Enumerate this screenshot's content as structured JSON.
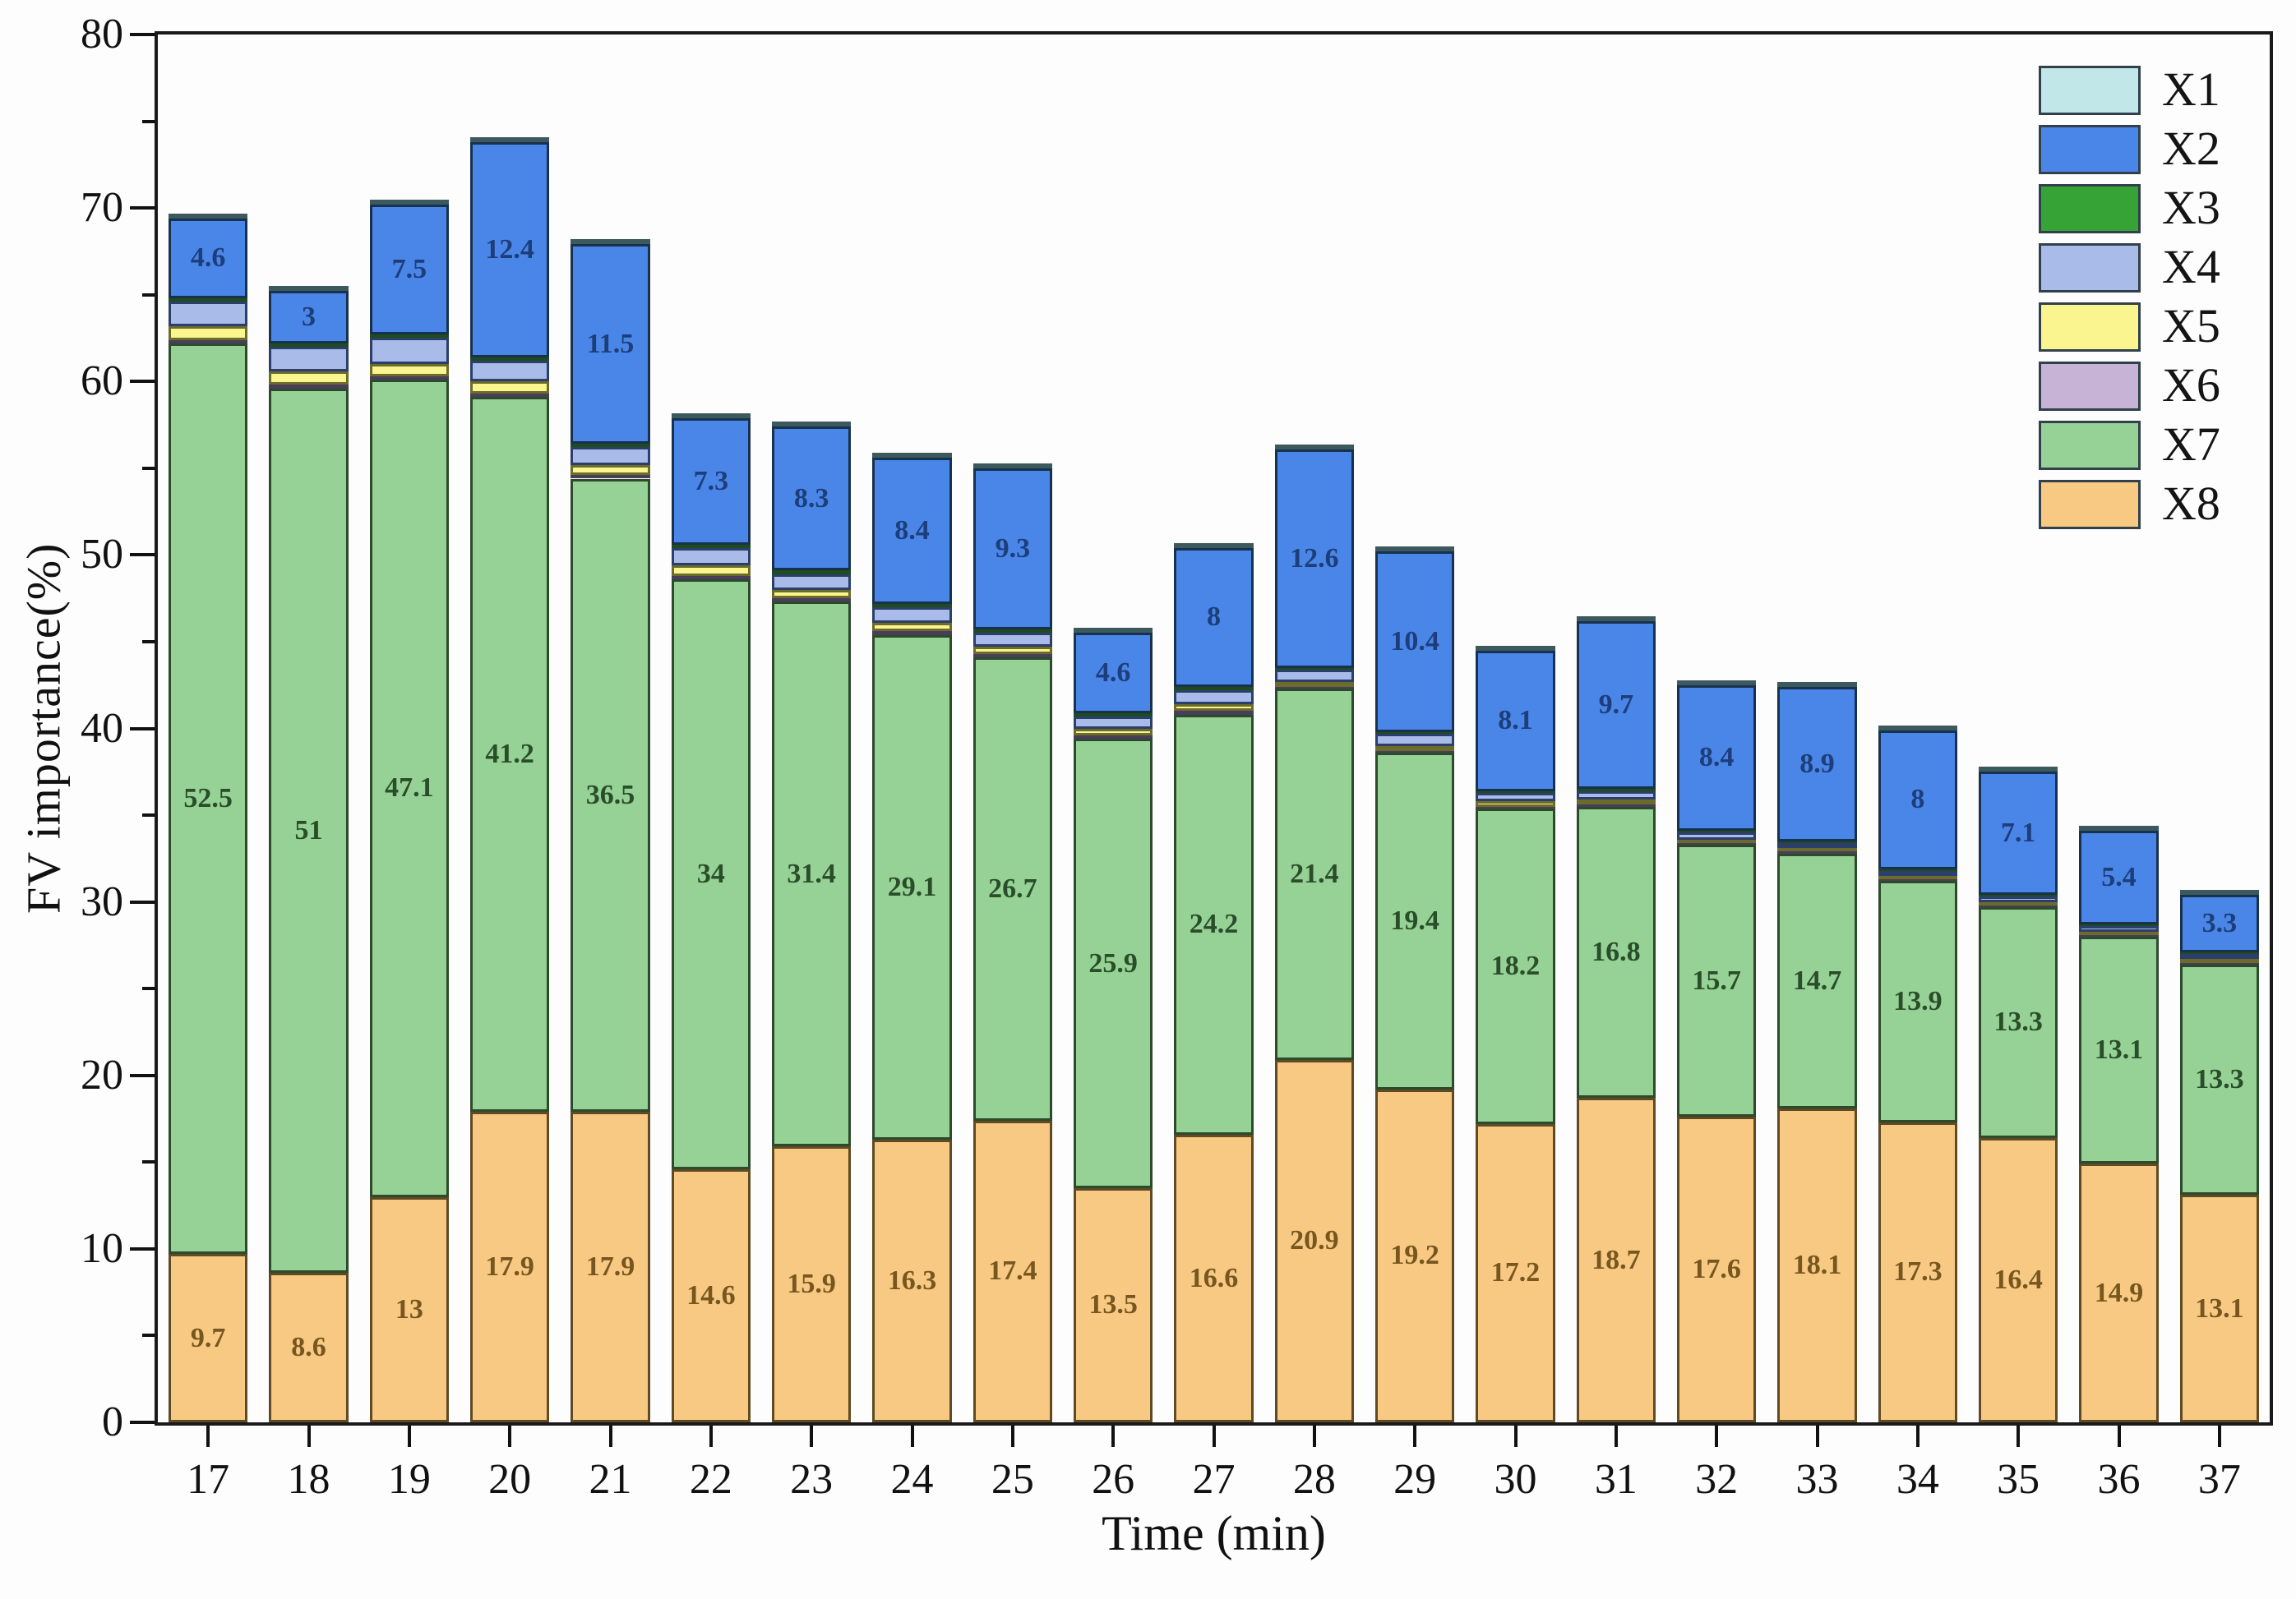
{
  "chart_data": {
    "type": "bar",
    "stacked": true,
    "xlabel": "Time (min)",
    "ylabel": "FV importance(%)",
    "ylim": [
      0,
      80
    ],
    "y_major_ticks": [
      0,
      10,
      20,
      30,
      40,
      50,
      60,
      70,
      80
    ],
    "y_minor_step": 5,
    "grid": false,
    "legend_position": "top-right-inside",
    "legend_order": [
      "X1",
      "X2",
      "X3",
      "X4",
      "X5",
      "X6",
      "X7",
      "X8"
    ],
    "stack_order_bottom_to_top": [
      "X8",
      "X7",
      "X6",
      "X5",
      "X4",
      "X3",
      "X2",
      "X1"
    ],
    "categories": [
      "17",
      "18",
      "19",
      "20",
      "21",
      "22",
      "23",
      "24",
      "25",
      "26",
      "27",
      "28",
      "29",
      "30",
      "31",
      "32",
      "33",
      "34",
      "35",
      "36",
      "37"
    ],
    "series": [
      {
        "name": "X1",
        "color": "#c1e7e9",
        "border": "#3c5a5e",
        "estimated": true,
        "values": [
          0.1,
          0.1,
          0.1,
          0.1,
          0.1,
          0.1,
          0.1,
          0.1,
          0.1,
          0.1,
          0.1,
          0.1,
          0.1,
          0.1,
          0.1,
          0.1,
          0.1,
          0.1,
          0.1,
          0.1,
          0.1
        ]
      },
      {
        "name": "X2",
        "color": "#4a86e8",
        "border": "#18314f",
        "label_color": "#1d3e7a",
        "values": [
          4.6,
          3,
          7.5,
          12.4,
          11.5,
          7.3,
          8.3,
          8.4,
          9.3,
          4.6,
          8,
          12.6,
          10.4,
          8.1,
          9.7,
          8.4,
          8.9,
          8,
          7.1,
          5.4,
          3.3
        ],
        "labels": [
          "4.6",
          "3",
          "7.5",
          "12.4",
          "11.5",
          "7.3",
          "8.3",
          "8.4",
          "9.3",
          "4.6",
          "8",
          "12.6",
          "10.4",
          "8.1",
          "9.7",
          "8.4",
          "8.9",
          "8",
          "7.1",
          "5.4",
          "3.3"
        ]
      },
      {
        "name": "X3",
        "color": "#36a336",
        "border": "#1d4d1d",
        "estimated": true,
        "values": [
          0.2,
          0.2,
          0.2,
          0.2,
          0.2,
          0.2,
          0.2,
          0.2,
          0.2,
          0.2,
          0.2,
          0.1,
          0.1,
          0.1,
          0.1,
          0.1,
          0.1,
          0.1,
          0.1,
          0.1,
          0.1
        ]
      },
      {
        "name": "X4",
        "color": "#a8bbe9",
        "border": "#2c3e6b",
        "estimated": true,
        "values": [
          1.4,
          1.4,
          1.5,
          1.2,
          1.0,
          1.0,
          0.9,
          0.9,
          0.8,
          0.7,
          0.8,
          0.7,
          0.7,
          0.5,
          0.5,
          0.4,
          0.3,
          0.3,
          0.3,
          0.3,
          0.3
        ]
      },
      {
        "name": "X5",
        "color": "#faf58e",
        "border": "#6b6b2a",
        "estimated": true,
        "values": [
          0.8,
          0.8,
          0.7,
          0.7,
          0.6,
          0.6,
          0.5,
          0.5,
          0.4,
          0.4,
          0.4,
          0.3,
          0.3,
          0.3,
          0.3,
          0.2,
          0.2,
          0.2,
          0.2,
          0.2,
          0.2
        ]
      },
      {
        "name": "X6",
        "color": "#c6b3d6",
        "border": "#4a3d5c",
        "estimated": true,
        "values": [
          0.2,
          0.2,
          0.2,
          0.2,
          0.2,
          0.2,
          0.2,
          0.2,
          0.2,
          0.2,
          0.2,
          0.1,
          0.1,
          0.1,
          0.1,
          0.1,
          0.1,
          0.1,
          0.1,
          0.1,
          0.1
        ]
      },
      {
        "name": "X7",
        "color": "#96d295",
        "border": "#2c4a2c",
        "label_color": "#2a4d2a",
        "values": [
          52.5,
          51,
          47.1,
          41.2,
          36.5,
          34,
          31.4,
          29.1,
          26.7,
          25.9,
          24.2,
          21.4,
          19.4,
          18.2,
          16.8,
          15.7,
          14.7,
          13.9,
          13.3,
          13.1,
          13.3
        ],
        "labels": [
          "52.5",
          "51",
          "47.1",
          "41.2",
          "36.5",
          "34",
          "31.4",
          "29.1",
          "26.7",
          "25.9",
          "24.2",
          "21.4",
          "19.4",
          "18.2",
          "16.8",
          "15.7",
          "14.7",
          "13.9",
          "13.3",
          "13.1",
          "13.3"
        ]
      },
      {
        "name": "X8",
        "color": "#f8c983",
        "border": "#5f4a23",
        "label_color": "#77571f",
        "values": [
          9.7,
          8.6,
          13,
          17.9,
          17.9,
          14.6,
          15.9,
          16.3,
          17.4,
          13.5,
          16.6,
          20.9,
          19.2,
          17.2,
          18.7,
          17.6,
          18.1,
          17.3,
          16.4,
          14.9,
          13.1
        ],
        "labels": [
          "9.7",
          "8.6",
          "13",
          "17.9",
          "17.9",
          "14.6",
          "15.9",
          "16.3",
          "17.4",
          "13.5",
          "16.6",
          "20.9",
          "19.2",
          "17.2",
          "18.7",
          "17.6",
          "18.1",
          "17.3",
          "16.4",
          "14.9",
          "13.1"
        ]
      }
    ]
  }
}
